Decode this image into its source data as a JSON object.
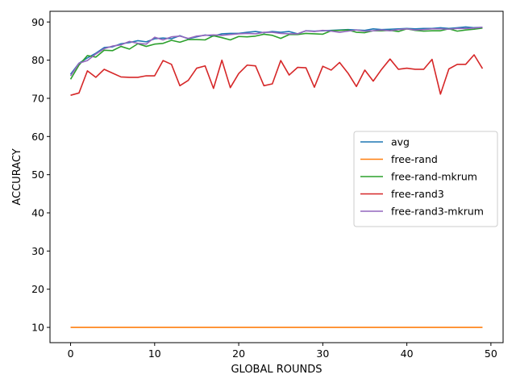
{
  "chart_data": {
    "type": "line",
    "title": "",
    "xlabel": "GLOBAL ROUNDS",
    "ylabel": "ACCURACY",
    "xlim": [
      -2.45,
      51.45
    ],
    "ylim": [
      6,
      92.8
    ],
    "xticks": [
      0,
      10,
      20,
      30,
      40,
      50
    ],
    "yticks": [
      10,
      20,
      30,
      40,
      50,
      60,
      70,
      80,
      90
    ],
    "grid": false,
    "legend_position": "center-right",
    "series": [
      {
        "name": "avg",
        "color": "#1f77b4",
        "values": [
          76.3,
          79.2,
          80.6,
          81.8,
          83.3,
          83.5,
          84.3,
          84.6,
          85.1,
          84.8,
          85.6,
          85.8,
          85.6,
          86.4,
          85.6,
          86.1,
          86.6,
          86.3,
          86.9,
          87.0,
          87.0,
          87.3,
          87.5,
          87.2,
          87.5,
          87.3,
          87.5,
          86.9,
          87.7,
          87.6,
          87.7,
          87.8,
          87.9,
          88.0,
          87.9,
          87.8,
          88.2,
          88.0,
          88.1,
          88.2,
          88.3,
          88.2,
          88.3,
          88.3,
          88.5,
          88.3,
          88.5,
          88.7,
          88.5,
          88.6
        ]
      },
      {
        "name": "free-rand",
        "color": "#ff7f0e",
        "values": [
          10,
          10,
          10,
          10,
          10,
          10,
          10,
          10,
          10,
          10,
          10,
          10,
          10,
          10,
          10,
          10,
          10,
          10,
          10,
          10,
          10,
          10,
          10,
          10,
          10,
          10,
          10,
          10,
          10,
          10,
          10,
          10,
          10,
          10,
          10,
          10,
          10,
          10,
          10,
          10,
          10,
          10,
          10,
          10,
          10,
          10,
          10,
          10,
          10,
          10
        ]
      },
      {
        "name": "free-rand-mkrum",
        "color": "#2ca02c",
        "values": [
          75.0,
          78.7,
          81.2,
          80.8,
          82.6,
          82.5,
          83.6,
          82.9,
          84.3,
          83.6,
          84.2,
          84.4,
          85.2,
          84.7,
          85.4,
          85.4,
          85.3,
          86.4,
          85.9,
          85.3,
          86.2,
          86.1,
          86.3,
          86.8,
          86.5,
          85.7,
          86.7,
          86.7,
          87.0,
          86.9,
          86.8,
          87.7,
          87.8,
          87.9,
          87.3,
          87.2,
          87.7,
          87.7,
          87.8,
          87.5,
          88.2,
          87.8,
          87.6,
          87.7,
          87.7,
          88.2,
          87.6,
          87.9,
          88.1,
          88.4
        ]
      },
      {
        "name": "free-rand3",
        "color": "#d62728",
        "values": [
          70.8,
          71.4,
          77.2,
          75.5,
          77.6,
          76.6,
          75.6,
          75.5,
          75.5,
          75.9,
          75.9,
          79.9,
          78.9,
          73.3,
          74.7,
          77.9,
          78.5,
          72.6,
          80.0,
          72.8,
          76.5,
          78.7,
          78.5,
          73.3,
          73.8,
          79.9,
          76.1,
          78.1,
          78.0,
          72.9,
          78.4,
          77.4,
          79.4,
          76.6,
          73.1,
          77.4,
          74.5,
          77.6,
          80.3,
          77.6,
          77.9,
          77.6,
          77.6,
          80.2,
          71.1,
          77.7,
          78.9,
          78.9,
          81.4,
          77.8
        ]
      },
      {
        "name": "free-rand3-mkrum",
        "color": "#9467bd",
        "values": [
          75.9,
          79.2,
          79.9,
          81.6,
          83.0,
          83.7,
          84.0,
          84.9,
          84.4,
          84.2,
          86.0,
          85.3,
          86.1,
          86.3,
          85.7,
          86.3,
          86.5,
          86.6,
          86.5,
          86.7,
          86.9,
          87.0,
          86.9,
          87.3,
          87.3,
          87.0,
          86.9,
          86.9,
          87.7,
          87.5,
          87.8,
          87.6,
          87.3,
          87.6,
          87.9,
          87.6,
          87.7,
          87.9,
          87.7,
          88.0,
          88.2,
          87.9,
          88.0,
          88.2,
          88.2,
          88.1,
          88.3,
          88.3,
          88.4,
          88.6
        ]
      }
    ]
  }
}
